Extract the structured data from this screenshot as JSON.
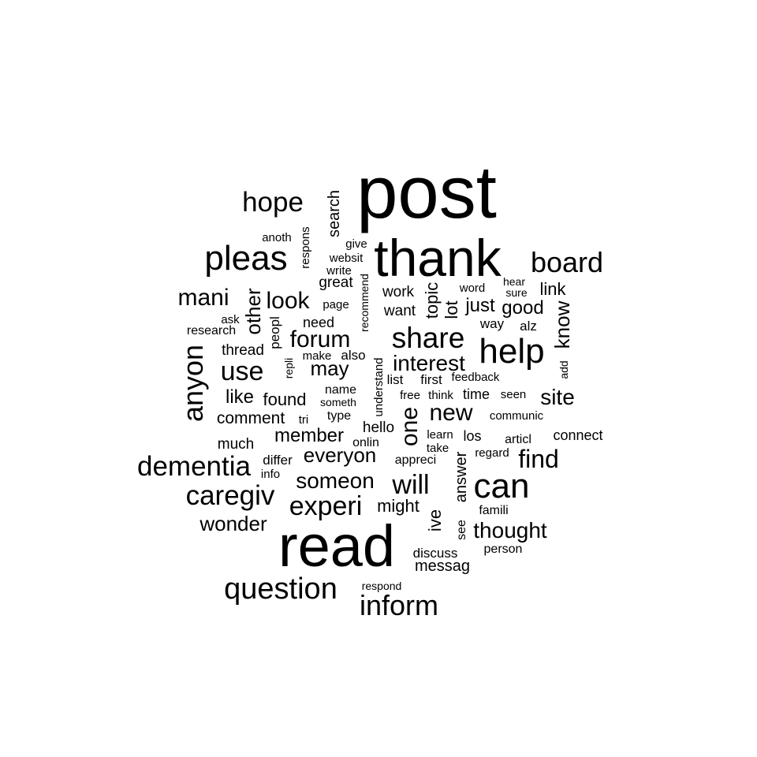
{
  "text_color": "#000000",
  "background": "#ffffff",
  "words": [
    {
      "text": "post"
    },
    {
      "text": "thank"
    },
    {
      "text": "read"
    },
    {
      "text": "help"
    },
    {
      "text": "can"
    },
    {
      "text": "board"
    },
    {
      "text": "pleas"
    },
    {
      "text": "question"
    },
    {
      "text": "hope"
    },
    {
      "text": "share"
    },
    {
      "text": "dementia"
    },
    {
      "text": "caregiv"
    },
    {
      "text": "experi"
    },
    {
      "text": "inform"
    },
    {
      "text": "anyon"
    },
    {
      "text": "use"
    },
    {
      "text": "will"
    },
    {
      "text": "someon"
    },
    {
      "text": "thought"
    },
    {
      "text": "find"
    },
    {
      "text": "mani"
    },
    {
      "text": "look"
    },
    {
      "text": "forum"
    },
    {
      "text": "wonder"
    },
    {
      "text": "new"
    },
    {
      "text": "everyon"
    },
    {
      "text": "interest"
    },
    {
      "text": "site"
    },
    {
      "text": "member"
    },
    {
      "text": "may"
    },
    {
      "text": "other"
    },
    {
      "text": "one"
    },
    {
      "text": "like"
    },
    {
      "text": "found"
    },
    {
      "text": "comment"
    },
    {
      "text": "know"
    },
    {
      "text": "good"
    },
    {
      "text": "just"
    },
    {
      "text": "link"
    },
    {
      "text": "topic"
    },
    {
      "text": "might"
    },
    {
      "text": "lot"
    },
    {
      "text": "search"
    },
    {
      "text": "ive"
    },
    {
      "text": "answer"
    },
    {
      "text": "messag"
    },
    {
      "text": "work"
    },
    {
      "text": "want"
    },
    {
      "text": "thread"
    },
    {
      "text": "much"
    },
    {
      "text": "hello"
    },
    {
      "text": "great"
    },
    {
      "text": "need"
    },
    {
      "text": "time"
    },
    {
      "text": "connect"
    },
    {
      "text": "peopl"
    },
    {
      "text": "also"
    },
    {
      "text": "discuss"
    },
    {
      "text": "differ"
    },
    {
      "text": "los"
    },
    {
      "text": "anoth"
    },
    {
      "text": "research"
    },
    {
      "text": "name"
    },
    {
      "text": "way"
    },
    {
      "text": "alz"
    },
    {
      "text": "list"
    },
    {
      "text": "first"
    },
    {
      "text": "type"
    },
    {
      "text": "onlin"
    },
    {
      "text": "appreci"
    },
    {
      "text": "word"
    },
    {
      "text": "page"
    },
    {
      "text": "respons"
    },
    {
      "text": "websit"
    },
    {
      "text": "write"
    },
    {
      "text": "ask"
    },
    {
      "text": "make"
    },
    {
      "text": "hear"
    },
    {
      "text": "sure"
    },
    {
      "text": "give"
    },
    {
      "text": "recommend"
    },
    {
      "text": "understand"
    },
    {
      "text": "repli"
    },
    {
      "text": "someth"
    },
    {
      "text": "free"
    },
    {
      "text": "think"
    },
    {
      "text": "feedback"
    },
    {
      "text": "seen"
    },
    {
      "text": "communic"
    },
    {
      "text": "tri"
    },
    {
      "text": "learn"
    },
    {
      "text": "take"
    },
    {
      "text": "articl"
    },
    {
      "text": "regard"
    },
    {
      "text": "info"
    },
    {
      "text": "see"
    },
    {
      "text": "famili"
    },
    {
      "text": "person"
    },
    {
      "text": "respond"
    },
    {
      "text": "add"
    }
  ]
}
